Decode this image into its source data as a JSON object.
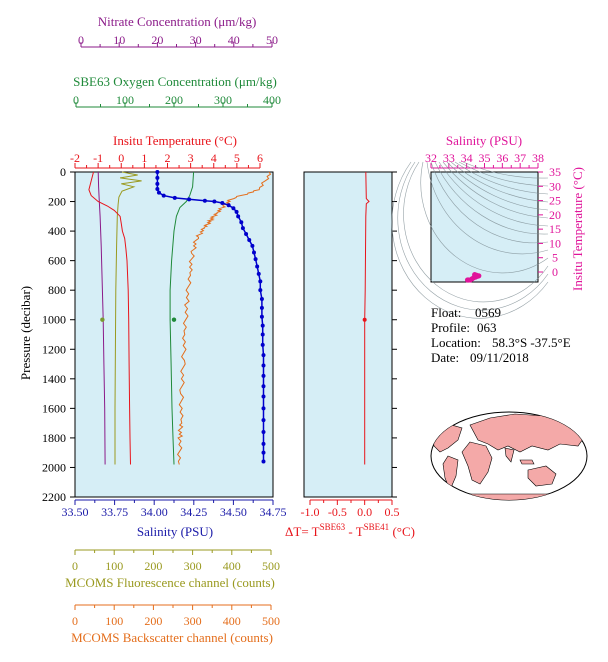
{
  "colors": {
    "nitrate": "#8b1a89",
    "oxygen": "#1f8a3a",
    "temperature": "#e8141b",
    "salinity": "#1a1aa8",
    "fluorescence": "#9a9a20",
    "backscatter": "#e46e1c",
    "deltaT": "#e8141b",
    "ts": "#e0149a",
    "plot_bg": "#d6eef6",
    "profile_blue": "#0000cc",
    "map_land": "#f4a9a8"
  },
  "axes": {
    "nitrate": {
      "title": "Nitrate Concentration (μm/kg)",
      "ticks": [
        "0",
        "10",
        "20",
        "30",
        "40",
        "50"
      ]
    },
    "oxygen": {
      "title": "SBE63 Oxygen Concentration (μm/kg)",
      "ticks": [
        "0",
        "100",
        "200",
        "300",
        "400"
      ]
    },
    "temperature": {
      "title": "Insitu Temperature (°C)",
      "ticks": [
        "-2",
        "-1",
        "0",
        "1",
        "2",
        "3",
        "4",
        "5",
        "6"
      ]
    },
    "salinity": {
      "title": "Salinity (PSU)",
      "ticks": [
        "33.50",
        "33.75",
        "34.00",
        "34.25",
        "34.50",
        "34.75"
      ]
    },
    "pressure": {
      "title": "Pressure (decibar)",
      "ticks": [
        "0",
        "200",
        "400",
        "600",
        "800",
        "1000",
        "1200",
        "1400",
        "1600",
        "1800",
        "2000",
        "2200"
      ]
    },
    "fluorescence": {
      "title": "MCOMS Fluorescence channel (counts)",
      "ticks": [
        "0",
        "100",
        "200",
        "300",
        "400",
        "500"
      ]
    },
    "backscatter": {
      "title": "MCOMS Backscatter channel (counts)",
      "ticks": [
        "0",
        "100",
        "200",
        "300",
        "400",
        "500"
      ]
    },
    "deltaT": {
      "title_prefix": "ΔT= T",
      "sup1": "SBE63",
      "mid": " - T",
      "sup2": "SBE41",
      "suffix": " (°C)",
      "ticks": [
        "-1.0",
        "-0.5",
        "0.0",
        "0.5"
      ]
    },
    "ts_salinity": {
      "title": "Salinity (PSU)",
      "ticks": [
        "32",
        "33",
        "34",
        "35",
        "36",
        "37",
        "38"
      ]
    },
    "ts_temperature": {
      "title": "Insitu Temperature (°C)",
      "ticks": [
        "35",
        "30",
        "25",
        "20",
        "15",
        "10",
        "5",
        "0"
      ]
    }
  },
  "info": {
    "float_label": "Float:",
    "float_value": "0569",
    "profile_label": "Profile:",
    "profile_value": "063",
    "location_label": "Location:",
    "location_value": "58.3°S  -37.5°E",
    "date_label": "Date:",
    "date_value": "09/11/2018"
  },
  "chart_data": [
    {
      "type": "line",
      "panel": "profile",
      "ylim": [
        0,
        2200
      ],
      "y_inverted": true,
      "series": [
        {
          "key": "salinity",
          "xlim": [
            33.5,
            34.75
          ],
          "markers": true,
          "points": [
            [
              34.02,
              0
            ],
            [
              34.02,
              40
            ],
            [
              34.02,
              80
            ],
            [
              34.02,
              115
            ],
            [
              34.03,
              140
            ],
            [
              34.06,
              160
            ],
            [
              34.13,
              175
            ],
            [
              34.22,
              185
            ],
            [
              34.32,
              195
            ],
            [
              34.38,
              200
            ],
            [
              34.43,
              210
            ],
            [
              34.47,
              225
            ],
            [
              34.5,
              245
            ],
            [
              34.52,
              270
            ],
            [
              34.53,
              300
            ],
            [
              34.55,
              340
            ],
            [
              34.56,
              380
            ],
            [
              34.58,
              420
            ],
            [
              34.6,
              460
            ],
            [
              34.62,
              500
            ],
            [
              34.63,
              545
            ],
            [
              34.64,
              590
            ],
            [
              34.65,
              640
            ],
            [
              34.66,
              690
            ],
            [
              34.67,
              740
            ],
            [
              34.67,
              800
            ],
            [
              34.68,
              860
            ],
            [
              34.68,
              920
            ],
            [
              34.68,
              980
            ],
            [
              34.685,
              1040
            ],
            [
              34.685,
              1100
            ],
            [
              34.685,
              1170
            ],
            [
              34.69,
              1240
            ],
            [
              34.69,
              1310
            ],
            [
              34.69,
              1380
            ],
            [
              34.69,
              1450
            ],
            [
              34.69,
              1520
            ],
            [
              34.69,
              1600
            ],
            [
              34.69,
              1680
            ],
            [
              34.69,
              1760
            ],
            [
              34.69,
              1840
            ],
            [
              34.69,
              1900
            ],
            [
              34.69,
              1960
            ]
          ]
        },
        {
          "key": "temperature",
          "xlim": [
            -2,
            6
          ],
          "points": [
            [
              -1.2,
              0
            ],
            [
              -1.3,
              60
            ],
            [
              -1.4,
              120
            ],
            [
              -1.3,
              160
            ],
            [
              -1.0,
              200
            ],
            [
              -0.6,
              230
            ],
            [
              -0.3,
              260
            ],
            [
              -0.05,
              300
            ],
            [
              0.0,
              350
            ],
            [
              0.05,
              400
            ],
            [
              0.15,
              450
            ],
            [
              0.2,
              520
            ],
            [
              0.25,
              600
            ],
            [
              0.3,
              800
            ],
            [
              0.32,
              1000
            ],
            [
              0.34,
              1300
            ],
            [
              0.36,
              1600
            ],
            [
              0.38,
              1800
            ],
            [
              0.4,
              1980
            ]
          ]
        },
        {
          "key": "oxygen",
          "xlim": [
            0,
            400
          ],
          "points": [
            [
              240,
              0
            ],
            [
              238,
              100
            ],
            [
              232,
              160
            ],
            [
              225,
              200
            ],
            [
              212,
              240
            ],
            [
              205,
              300
            ],
            [
              200,
              400
            ],
            [
              195,
              600
            ],
            [
              192,
              800
            ],
            [
              192,
              1000
            ],
            [
              194,
              1300
            ],
            [
              196,
              1600
            ],
            [
              198,
              1800
            ],
            [
              200,
              1980
            ]
          ]
        },
        {
          "key": "nitrate",
          "xlim": [
            0,
            50
          ],
          "points": [
            [
              4.5,
              0
            ],
            [
              4.6,
              100
            ],
            [
              4.8,
              200
            ],
            [
              5.0,
              300
            ],
            [
              5.3,
              500
            ],
            [
              5.5,
              700
            ],
            [
              5.8,
              1000
            ],
            [
              6.0,
              1300
            ],
            [
              6.2,
              1600
            ],
            [
              6.3,
              1980
            ]
          ]
        },
        {
          "key": "fluorescence",
          "xlim": [
            0,
            500
          ],
          "points": [
            [
              120,
              0
            ],
            [
              160,
              20
            ],
            [
              115,
              40
            ],
            [
              170,
              60
            ],
            [
              118,
              80
            ],
            [
              150,
              100
            ],
            [
              120,
              130
            ],
            [
              112,
              170
            ],
            [
              110,
              220
            ],
            [
              108,
              300
            ],
            [
              106,
              500
            ],
            [
              104,
              800
            ],
            [
              103,
              1200
            ],
            [
              102,
              1600
            ],
            [
              102,
              1980
            ]
          ]
        },
        {
          "key": "backscatter",
          "xlim": [
            0,
            500
          ],
          "noisy": true,
          "points": [
            [
              500,
              0
            ],
            [
              470,
              120
            ],
            [
              400,
              180
            ],
            [
              380,
              230
            ],
            [
              360,
              280
            ],
            [
              345,
              330
            ],
            [
              330,
              380
            ],
            [
              310,
              450
            ],
            [
              300,
              550
            ],
            [
              292,
              700
            ],
            [
              285,
              900
            ],
            [
              280,
              1100
            ],
            [
              276,
              1300
            ],
            [
              272,
              1500
            ],
            [
              270,
              1700
            ],
            [
              268,
              1800
            ],
            [
              266,
              1980
            ]
          ]
        }
      ],
      "markers_at_1000": {
        "nitrate": 5.6,
        "oxygen": 200,
        "pressure": 1000
      }
    },
    {
      "type": "line",
      "panel": "deltaT",
      "xlim": [
        -1.0,
        0.5
      ],
      "ylim": [
        0,
        2200
      ],
      "series": [
        {
          "key": "deltaT",
          "points": [
            [
              0.02,
              0
            ],
            [
              0.03,
              180
            ],
            [
              0.08,
              200
            ],
            [
              0.03,
              215
            ],
            [
              0.02,
              300
            ],
            [
              0.01,
              800
            ],
            [
              0.0,
              1000
            ],
            [
              0.0,
              1500
            ],
            [
              0.0,
              1980
            ]
          ]
        }
      ]
    },
    {
      "type": "scatter",
      "panel": "ts",
      "xlim": [
        32,
        38
      ],
      "ylim": [
        -5,
        35
      ],
      "series": [
        {
          "key": "ts",
          "points": [
            [
              34.05,
              -1.3
            ],
            [
              34.1,
              -1.2
            ],
            [
              34.2,
              -1.0
            ],
            [
              34.3,
              -0.6
            ],
            [
              34.4,
              -0.2
            ],
            [
              34.5,
              0.0
            ],
            [
              34.55,
              0.2
            ],
            [
              34.62,
              0.3
            ],
            [
              34.68,
              0.4
            ],
            [
              34.55,
              0.6
            ],
            [
              34.45,
              0.8
            ]
          ]
        }
      ]
    }
  ]
}
